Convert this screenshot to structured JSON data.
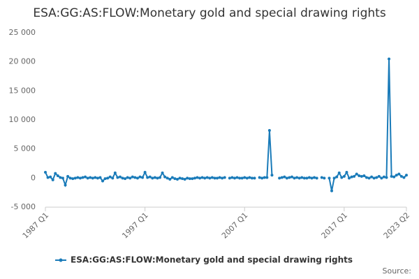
{
  "chart_data": {
    "type": "line",
    "title": "ESA:GG:AS:FLOW:Monetary gold and special drawing rights",
    "source": "Source:",
    "categories": [
      "1987 Q1",
      null,
      null,
      null,
      null,
      null,
      null,
      null,
      null,
      null,
      null,
      null,
      null,
      null,
      null,
      null,
      null,
      null,
      null,
      null,
      null,
      null,
      null,
      null,
      null,
      null,
      null,
      null,
      null,
      null,
      null,
      null,
      null,
      null,
      null,
      null,
      null,
      null,
      null,
      null,
      "1997 Q1",
      null,
      null,
      null,
      null,
      null,
      null,
      null,
      null,
      null,
      null,
      null,
      null,
      null,
      null,
      null,
      null,
      null,
      null,
      null,
      null,
      null,
      null,
      null,
      null,
      null,
      null,
      null,
      null,
      null,
      null,
      null,
      null,
      null,
      null,
      null,
      null,
      null,
      null,
      null,
      "2007 Q1",
      null,
      null,
      null,
      null,
      null,
      null,
      null,
      null,
      null,
      null,
      null,
      null,
      null,
      null,
      null,
      null,
      null,
      null,
      null,
      null,
      null,
      null,
      null,
      null,
      null,
      null,
      null,
      null,
      null,
      null,
      null,
      null,
      null,
      null,
      null,
      null,
      null,
      null,
      null,
      "2017 Q1",
      null,
      null,
      null,
      null,
      null,
      null,
      null,
      null,
      null,
      null,
      null,
      null,
      null,
      null,
      null,
      null,
      null,
      null,
      null,
      null,
      null,
      null,
      null,
      null,
      "2023 Q2"
    ],
    "series": [
      {
        "name": "ESA:GG:AS:FLOW:Monetary gold and special drawing rights",
        "color": "#1a7bb9",
        "values": [
          1000,
          100,
          200,
          -300,
          800,
          400,
          100,
          0,
          -1200,
          300,
          0,
          -100,
          0,
          100,
          0,
          100,
          200,
          0,
          100,
          0,
          100,
          0,
          100,
          -500,
          -100,
          0,
          200,
          0,
          900,
          100,
          200,
          0,
          -100,
          100,
          0,
          200,
          100,
          0,
          200,
          100,
          1000,
          100,
          200,
          0,
          100,
          0,
          100,
          900,
          200,
          0,
          -200,
          100,
          -100,
          -200,
          0,
          -100,
          -200,
          0,
          -100,
          -100,
          0,
          100,
          0,
          100,
          0,
          100,
          0,
          100,
          0,
          0,
          100,
          0,
          100,
          null,
          0,
          100,
          0,
          100,
          0,
          0,
          100,
          0,
          100,
          0,
          0,
          null,
          100,
          0,
          100,
          100,
          8200,
          500,
          null,
          null,
          0,
          100,
          200,
          0,
          100,
          200,
          0,
          100,
          0,
          100,
          0,
          0,
          100,
          0,
          100,
          0,
          null,
          100,
          0,
          null,
          0,
          -2200,
          0,
          200,
          900,
          100,
          300,
          1000,
          0,
          200,
          300,
          700,
          400,
          300,
          400,
          100,
          0,
          200,
          0,
          100,
          300,
          0,
          200,
          100,
          20500,
          300,
          200,
          500,
          700,
          300,
          100,
          500
        ]
      }
    ],
    "ylim": [
      -5000,
      25000
    ],
    "yticks": [
      {
        "value": -5000,
        "label": "-5 000"
      },
      0,
      {
        "value": 5000,
        "label": "5 000"
      },
      {
        "value": 10000,
        "label": "10 000"
      },
      {
        "value": 15000,
        "label": "15 000"
      },
      {
        "value": 20000,
        "label": "20 000"
      },
      {
        "value": 25000,
        "label": "25 000"
      }
    ],
    "grid": false,
    "legend": "bottom"
  }
}
